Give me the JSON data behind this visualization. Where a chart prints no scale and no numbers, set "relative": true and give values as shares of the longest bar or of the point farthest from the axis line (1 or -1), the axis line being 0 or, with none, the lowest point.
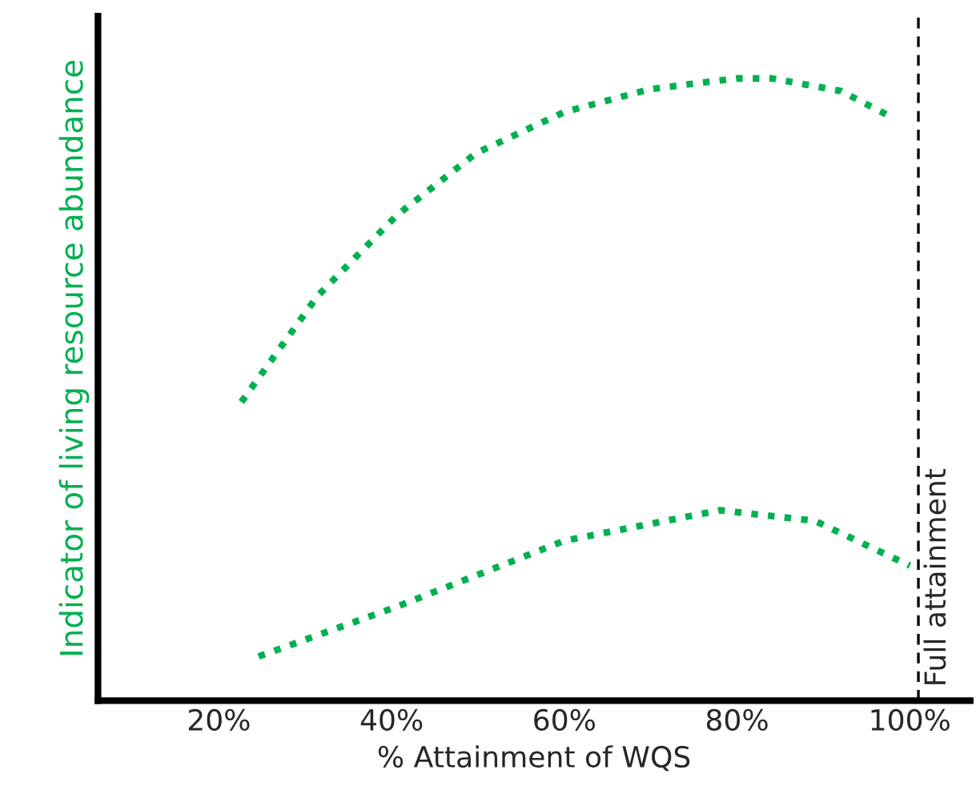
{
  "chart_data": {
    "type": "line",
    "relative": true,
    "xlabel": "% Attainment of WQS",
    "ylabel": "Indicator of living resource abundance",
    "xlim": [
      6,
      107
    ],
    "xticks": [
      {
        "value": 20,
        "label": "20%"
      },
      {
        "value": 40,
        "label": "40%"
      },
      {
        "value": 60,
        "label": "60%"
      },
      {
        "value": 80,
        "label": "80%"
      },
      {
        "value": 100,
        "label": "100%"
      }
    ],
    "series": [
      {
        "color": "#00b050",
        "x": [
          22.6,
          31.4,
          40.6,
          49.8,
          60,
          70,
          80,
          84,
          92,
          98
        ],
        "values": [
          0.48,
          0.65,
          0.78,
          0.88,
          0.946,
          0.983,
          1.0,
          1.0,
          0.98,
          0.937
        ]
      },
      {
        "color": "#00b050",
        "x": [
          24.6,
          40.6,
          60,
          78,
          89,
          100
        ],
        "values": [
          0.071,
          0.151,
          0.257,
          0.306,
          0.289,
          0.217
        ]
      }
    ],
    "ref_lines": [
      {
        "axis": "x",
        "value": 101,
        "label": "Full attainment",
        "color": "#000000",
        "line_style": "dashed"
      }
    ],
    "line_style": "dotted",
    "marker": "none",
    "grid": false,
    "legend": false
  }
}
